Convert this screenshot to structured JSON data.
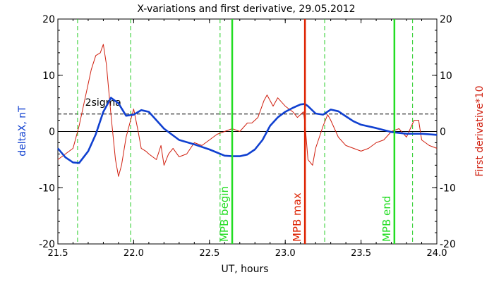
{
  "chart_data": {
    "type": "line",
    "title": "X-variations and first derivative, 29.05.2012",
    "xlabel": "UT, hours",
    "ylabel_left": "deltaX, nT",
    "ylabel_right": "First derivative*10",
    "xlim": [
      21.5,
      24.0
    ],
    "ylim_left": [
      -20,
      20
    ],
    "ylim_right": [
      -20,
      20
    ],
    "x_ticks": [
      "21.5",
      "22.0",
      "22.5",
      "23.0",
      "23.5",
      "24.0"
    ],
    "x_tick_values": [
      21.5,
      22.0,
      22.5,
      23.0,
      23.5,
      24.0
    ],
    "y_ticks": [
      "-20",
      "-10",
      "0",
      "10",
      "20"
    ],
    "y_tick_values": [
      -20,
      -10,
      0,
      10,
      20
    ],
    "threshold": {
      "label": "2sigma",
      "value": 3.1,
      "color": "#000000"
    },
    "zero_line": 0,
    "colors": {
      "deltaX": "#1040d0",
      "derivative": "#d02010",
      "dashed_markers": "#22cc22",
      "mpb": "#22dd22",
      "max": "#dd2200",
      "ylabel_left": "#1040d0",
      "ylabel_right": "#d02010"
    },
    "dashed_markers_x": [
      21.63,
      21.98,
      22.57,
      23.26,
      23.84
    ],
    "vertical_markers": [
      {
        "x": 22.65,
        "label": "MPB begin",
        "color": "#22dd22"
      },
      {
        "x": 23.13,
        "label": "MPB max",
        "color": "#dd2200"
      },
      {
        "x": 23.72,
        "label": "MPB end",
        "color": "#22dd22"
      }
    ],
    "series": [
      {
        "name": "deltaX",
        "axis": "left",
        "x": [
          21.5,
          21.55,
          21.6,
          21.64,
          21.7,
          21.75,
          21.8,
          21.85,
          21.9,
          21.95,
          22.0,
          22.05,
          22.1,
          22.15,
          22.2,
          22.3,
          22.4,
          22.5,
          22.6,
          22.65,
          22.7,
          22.75,
          22.8,
          22.85,
          22.9,
          22.95,
          23.0,
          23.05,
          23.1,
          23.13,
          23.15,
          23.2,
          23.25,
          23.3,
          23.35,
          23.4,
          23.45,
          23.5,
          23.6,
          23.7,
          23.8,
          23.9,
          24.0
        ],
        "y": [
          -3.0,
          -4.6,
          -5.5,
          -5.6,
          -3.5,
          -0.5,
          3.5,
          6.0,
          5.0,
          2.8,
          3.0,
          3.8,
          3.5,
          2.0,
          0.5,
          -1.5,
          -2.3,
          -3.2,
          -4.3,
          -4.4,
          -4.4,
          -4.1,
          -3.2,
          -1.5,
          1.0,
          2.5,
          3.5,
          4.2,
          4.8,
          4.9,
          4.5,
          3.2,
          3.0,
          3.9,
          3.6,
          2.7,
          1.8,
          1.2,
          0.6,
          -0.1,
          -0.4,
          -0.4,
          -0.6
        ]
      },
      {
        "name": "First derivative*10",
        "axis": "right",
        "x": [
          21.5,
          21.55,
          21.6,
          21.64,
          21.68,
          21.72,
          21.75,
          21.78,
          21.8,
          21.82,
          21.85,
          21.88,
          21.9,
          21.92,
          21.95,
          21.98,
          22.0,
          22.03,
          22.05,
          22.08,
          22.1,
          22.15,
          22.18,
          22.2,
          22.23,
          22.26,
          22.3,
          22.35,
          22.4,
          22.45,
          22.5,
          22.55,
          22.6,
          22.65,
          22.7,
          22.75,
          22.78,
          22.82,
          22.86,
          22.88,
          22.9,
          22.92,
          22.95,
          23.0,
          23.05,
          23.08,
          23.1,
          23.12,
          23.13,
          23.15,
          23.18,
          23.2,
          23.25,
          23.28,
          23.3,
          23.35,
          23.4,
          23.45,
          23.5,
          23.55,
          23.6,
          23.65,
          23.7,
          23.75,
          23.8,
          23.85,
          23.88,
          23.9,
          23.95,
          24.0
        ],
        "y": [
          -5.0,
          -4.0,
          -3.0,
          1.0,
          6.0,
          11.0,
          13.5,
          14.0,
          15.5,
          12.0,
          3.0,
          -5.0,
          -8.0,
          -6.0,
          -1.0,
          2.0,
          4.0,
          0.0,
          -3.0,
          -3.5,
          -4.0,
          -5.0,
          -2.5,
          -6.0,
          -4.0,
          -3.0,
          -4.5,
          -4.0,
          -2.0,
          -2.5,
          -1.5,
          -0.5,
          0.0,
          0.5,
          0.0,
          1.5,
          1.5,
          2.5,
          5.5,
          6.5,
          5.5,
          4.5,
          6.0,
          4.5,
          3.5,
          2.5,
          3.0,
          3.5,
          1.5,
          -5.0,
          -6.0,
          -3.0,
          1.0,
          3.0,
          2.0,
          -1.0,
          -2.5,
          -3.0,
          -3.5,
          -3.0,
          -2.0,
          -1.5,
          0.0,
          0.5,
          -1.0,
          2.0,
          2.0,
          -1.5,
          -2.5,
          -3.0
        ]
      }
    ]
  }
}
